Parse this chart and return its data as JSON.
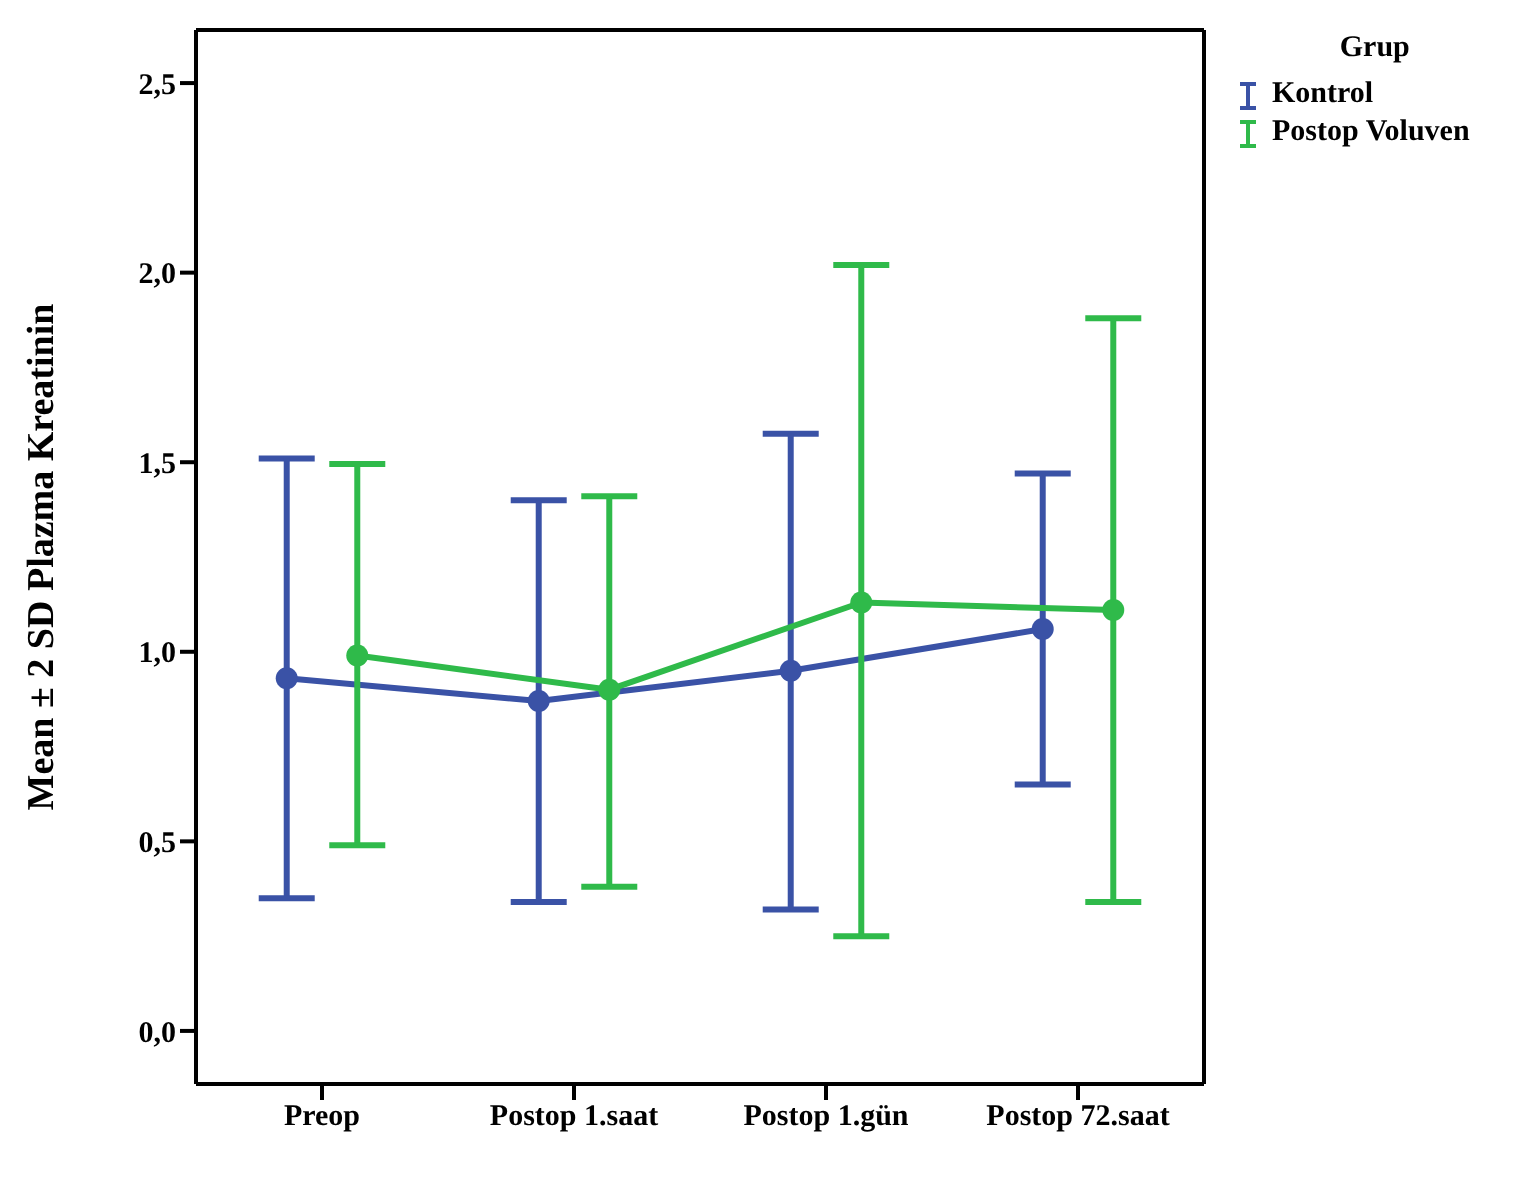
{
  "chart_data": {
    "type": "line",
    "ylabel": "Mean ± 2 SD Plazma Kreatinin",
    "legend_title": "Grup",
    "legend": "top right",
    "marker": "circle",
    "categories": [
      "Preop",
      "Postop 1.saat",
      "Postop 1.gün",
      "Postop 72.saat"
    ],
    "ylim": [
      -0.14,
      2.64
    ],
    "yticks": [
      {
        "value": 0,
        "label": "0,0"
      },
      {
        "value": 0.5,
        "label": "0,5"
      },
      {
        "value": 1,
        "label": "1,0"
      },
      {
        "value": 1.5,
        "label": "1,5"
      },
      {
        "value": 2,
        "label": "2,0"
      },
      {
        "value": 2.5,
        "label": "2,5"
      }
    ],
    "series": [
      {
        "name": "Kontrol",
        "color": "#3a52a6",
        "values": [
          0.93,
          0.87,
          0.95,
          1.06
        ],
        "errors": [
          [
            0.35,
            1.51
          ],
          [
            0.34,
            1.4
          ],
          [
            0.32,
            1.575
          ],
          [
            0.65,
            1.47
          ]
        ]
      },
      {
        "name": "Postop Voluven",
        "color": "#2fba4a",
        "values": [
          0.99,
          0.9,
          1.13,
          1.11
        ],
        "errors": [
          [
            0.49,
            1.495
          ],
          [
            0.38,
            1.41
          ],
          [
            0.25,
            2.02
          ],
          [
            0.34,
            1.88
          ]
        ]
      }
    ]
  }
}
